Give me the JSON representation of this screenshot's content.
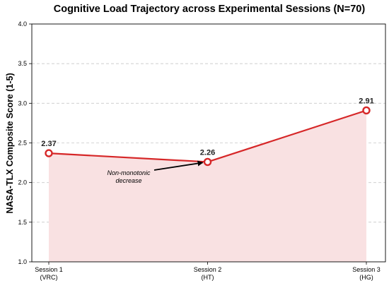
{
  "chart_data": {
    "type": "line",
    "title": "Cognitive Load Trajectory across Experimental Sessions (N=70)",
    "xlabel": "",
    "ylabel": "NASA-TLX Composite Score (1-5)",
    "categories": [
      [
        "Session 1",
        "(VRC)"
      ],
      [
        "Session 2",
        "(HT)"
      ],
      [
        "Session 3",
        "(HG)"
      ]
    ],
    "series": [
      {
        "values": [
          2.37,
          2.26,
          2.91
        ]
      }
    ],
    "value_labels": [
      "2.37",
      "2.26",
      "2.91"
    ],
    "ylim": [
      1.0,
      4.0
    ],
    "yticks": [
      "1.0",
      "1.5",
      "2.0",
      "2.5",
      "3.0",
      "3.5",
      "4.0"
    ],
    "grid": "horizontal dashed",
    "line_color": "#d62728",
    "fill_color": "#f9e1e2",
    "annotation": {
      "lines": [
        "Non-monotonic",
        "decrease"
      ],
      "target_category": 1
    }
  }
}
